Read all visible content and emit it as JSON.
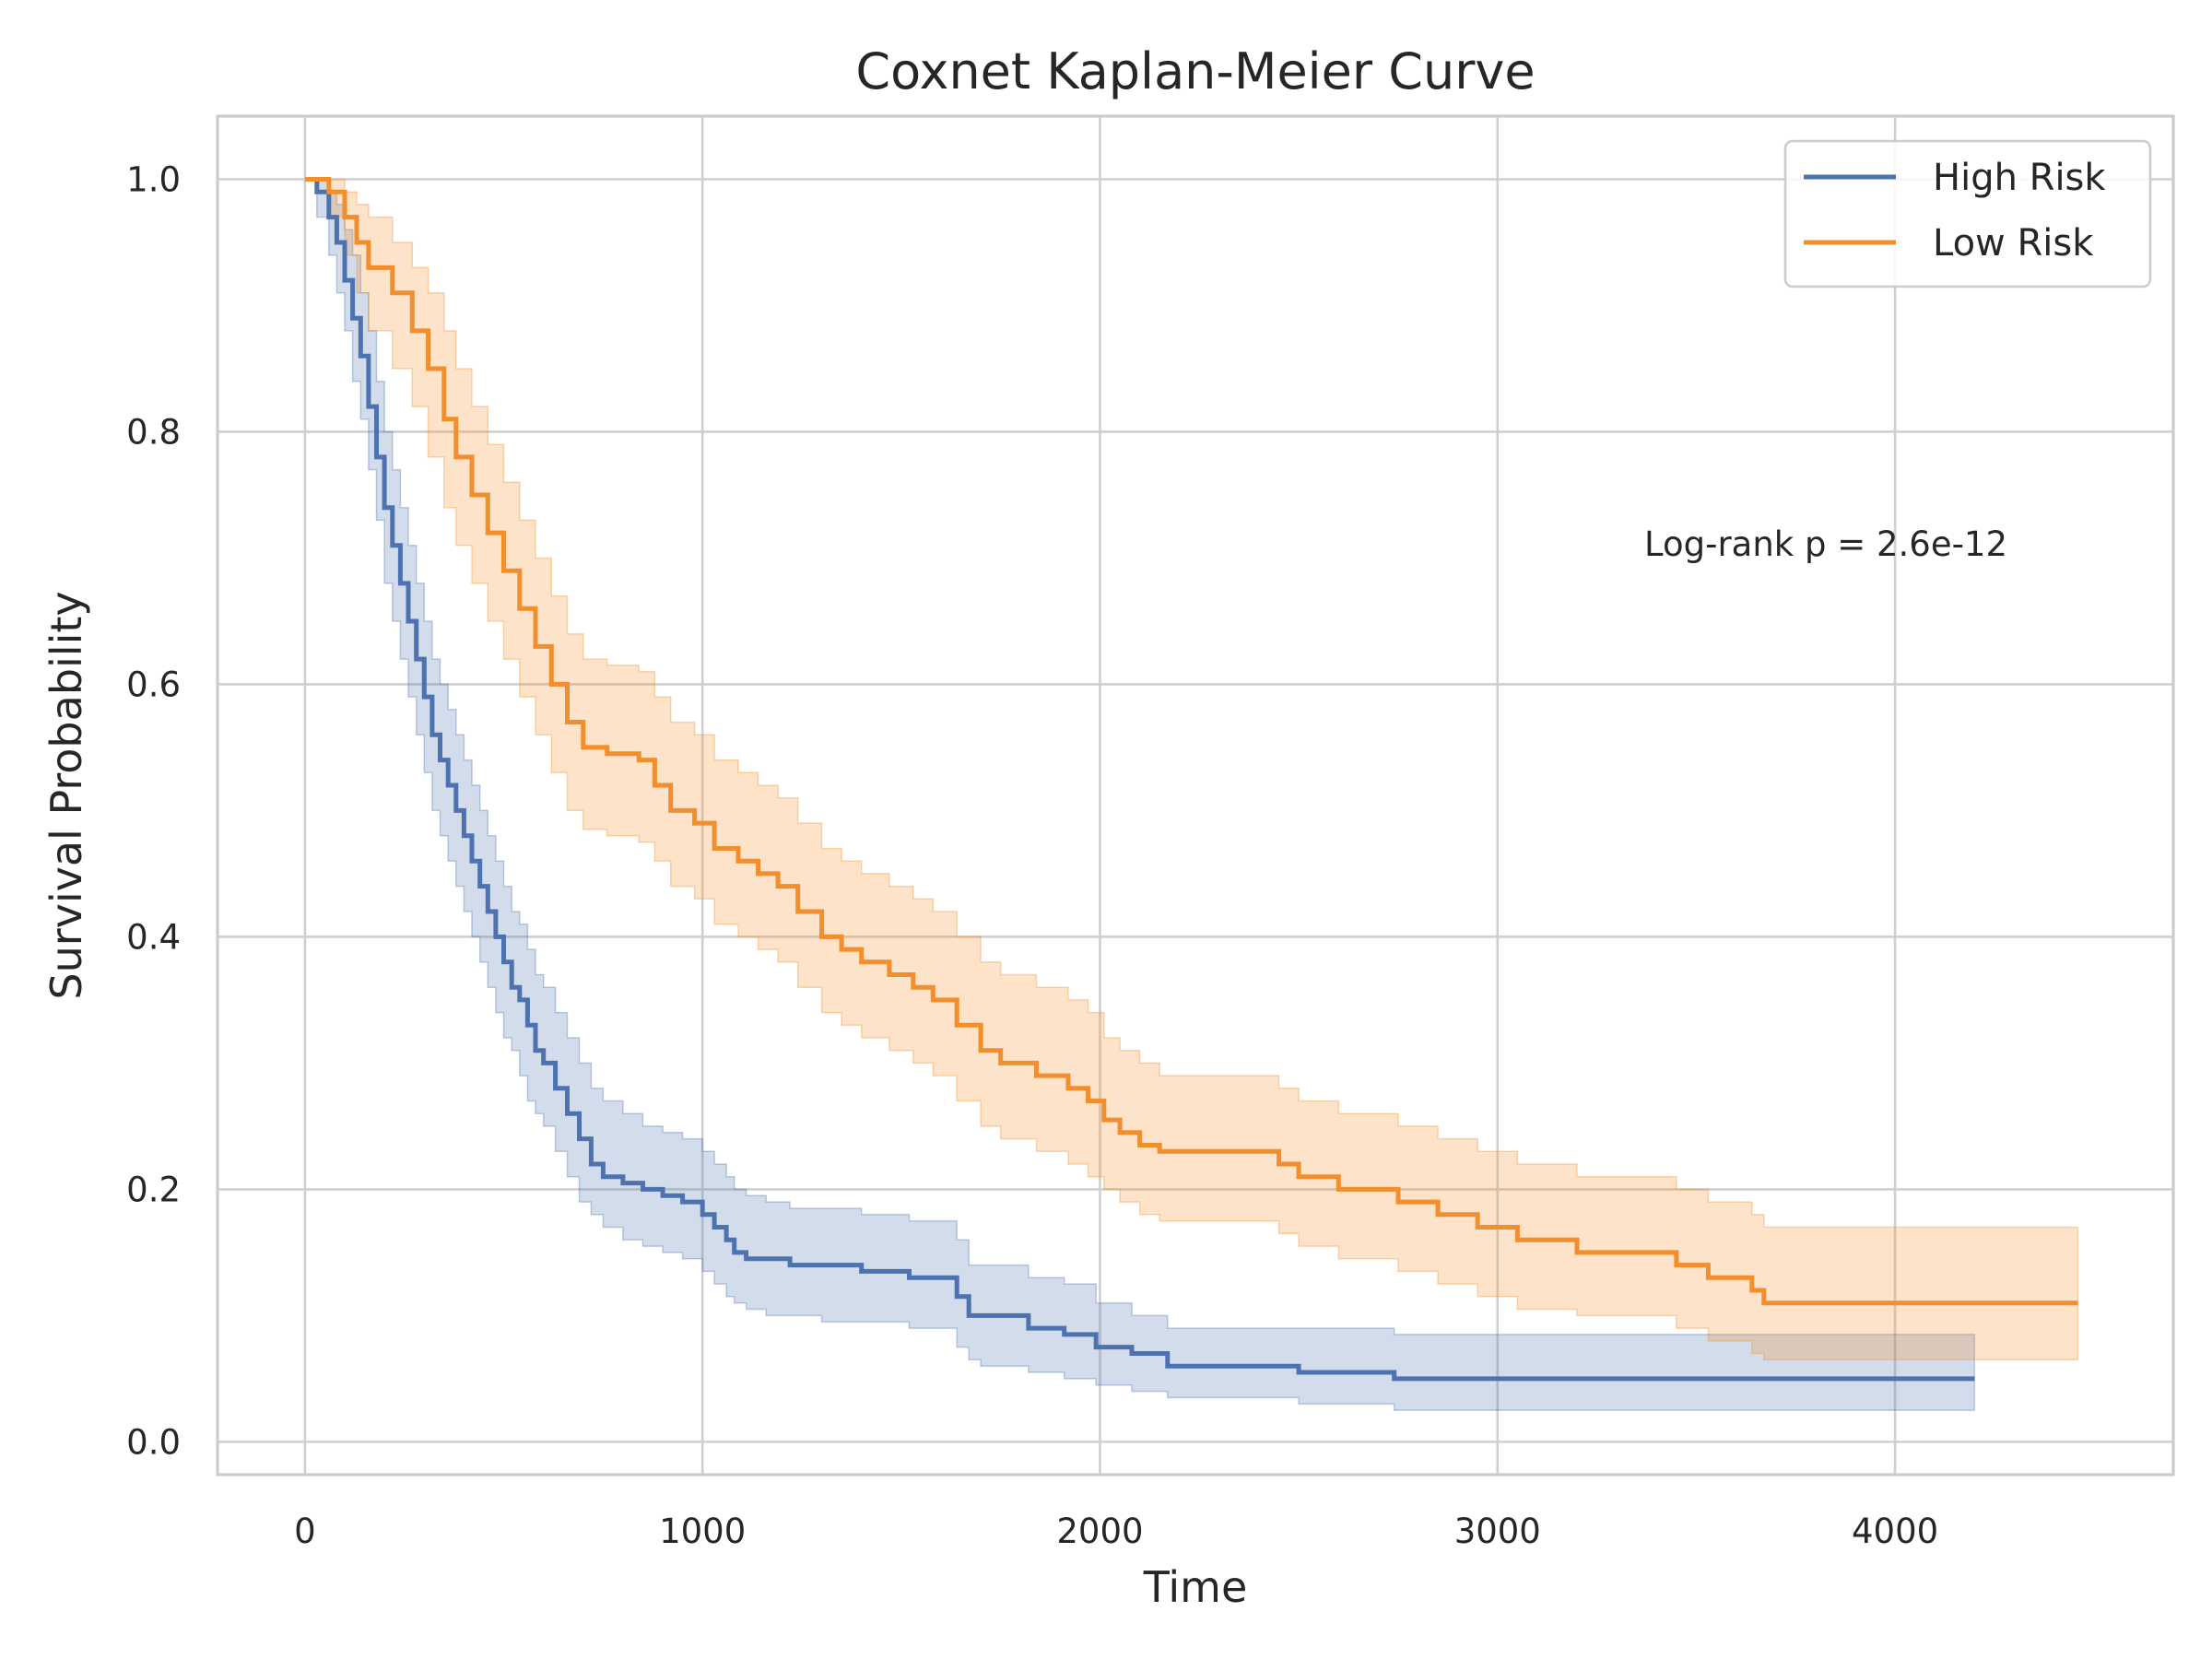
{
  "chart_data": {
    "type": "line",
    "title": "Coxnet Kaplan-Meier Curve",
    "xlabel": "Time",
    "ylabel": "Survival Probability",
    "xlim": [
      -220,
      4700
    ],
    "ylim": [
      -0.026,
      1.05
    ],
    "xticks": [
      0,
      1000,
      2000,
      3000,
      4000
    ],
    "yticks": [
      0.0,
      0.2,
      0.4,
      0.6,
      0.8,
      1.0
    ],
    "xtick_labels": [
      "0",
      "1000",
      "2000",
      "3000",
      "4000"
    ],
    "ytick_labels": [
      "0.0",
      "0.2",
      "0.4",
      "0.6",
      "0.8",
      "1.0"
    ],
    "grid": true,
    "legend_position": "top-right",
    "annotation": "Log-rank p = 2.6e-12",
    "series": [
      {
        "name": "High Risk",
        "color": "#4c72b0",
        "step": true,
        "x": [
          0,
          30,
          60,
          80,
          100,
          120,
          140,
          160,
          180,
          200,
          220,
          240,
          260,
          280,
          300,
          320,
          340,
          360,
          380,
          400,
          420,
          440,
          460,
          480,
          500,
          520,
          540,
          560,
          580,
          600,
          630,
          660,
          690,
          720,
          750,
          800,
          850,
          900,
          950,
          1000,
          1030,
          1060,
          1080,
          1110,
          1160,
          1220,
          1300,
          1400,
          1520,
          1640,
          1670,
          1700,
          1820,
          1910,
          1990,
          2080,
          2170,
          2500,
          2740,
          4200
        ],
        "y": [
          1.0,
          0.99,
          0.97,
          0.95,
          0.92,
          0.89,
          0.86,
          0.82,
          0.78,
          0.74,
          0.71,
          0.68,
          0.65,
          0.62,
          0.59,
          0.56,
          0.54,
          0.52,
          0.5,
          0.48,
          0.46,
          0.44,
          0.42,
          0.4,
          0.38,
          0.36,
          0.35,
          0.33,
          0.31,
          0.3,
          0.28,
          0.26,
          0.24,
          0.22,
          0.21,
          0.205,
          0.2,
          0.195,
          0.19,
          0.18,
          0.17,
          0.16,
          0.15,
          0.145,
          0.145,
          0.14,
          0.14,
          0.135,
          0.13,
          0.115,
          0.1,
          0.1,
          0.09,
          0.085,
          0.075,
          0.07,
          0.06,
          0.055,
          0.05,
          0.05
        ],
        "ci_lower": [
          1.0,
          0.97,
          0.94,
          0.91,
          0.88,
          0.84,
          0.81,
          0.77,
          0.73,
          0.68,
          0.65,
          0.62,
          0.59,
          0.56,
          0.53,
          0.5,
          0.48,
          0.46,
          0.44,
          0.42,
          0.4,
          0.38,
          0.36,
          0.34,
          0.32,
          0.31,
          0.29,
          0.27,
          0.26,
          0.25,
          0.23,
          0.21,
          0.19,
          0.18,
          0.17,
          0.16,
          0.155,
          0.15,
          0.145,
          0.135,
          0.125,
          0.115,
          0.11,
          0.105,
          0.1,
          0.1,
          0.095,
          0.095,
          0.09,
          0.075,
          0.065,
          0.06,
          0.055,
          0.05,
          0.045,
          0.04,
          0.035,
          0.03,
          0.025,
          0.025
        ],
        "ci_upper": [
          1.0,
          1.0,
          0.99,
          0.98,
          0.96,
          0.94,
          0.91,
          0.88,
          0.84,
          0.8,
          0.77,
          0.74,
          0.71,
          0.68,
          0.65,
          0.62,
          0.6,
          0.58,
          0.56,
          0.54,
          0.52,
          0.5,
          0.48,
          0.46,
          0.44,
          0.42,
          0.41,
          0.39,
          0.37,
          0.36,
          0.34,
          0.32,
          0.3,
          0.28,
          0.27,
          0.26,
          0.25,
          0.245,
          0.24,
          0.23,
          0.22,
          0.21,
          0.2,
          0.195,
          0.19,
          0.185,
          0.185,
          0.18,
          0.175,
          0.16,
          0.14,
          0.14,
          0.13,
          0.125,
          0.11,
          0.1,
          0.09,
          0.09,
          0.085,
          0.085
        ]
      },
      {
        "name": "Low Risk",
        "color": "#f28e2b",
        "step": true,
        "x": [
          0,
          60,
          100,
          130,
          160,
          220,
          270,
          310,
          350,
          380,
          420,
          460,
          500,
          540,
          580,
          620,
          660,
          700,
          760,
          840,
          880,
          920,
          980,
          1030,
          1090,
          1140,
          1190,
          1240,
          1300,
          1350,
          1400,
          1470,
          1530,
          1580,
          1640,
          1700,
          1750,
          1840,
          1920,
          1970,
          2010,
          2050,
          2100,
          2150,
          2450,
          2500,
          2600,
          2750,
          2850,
          2950,
          3050,
          3200,
          3450,
          3530,
          3640,
          3670,
          4460
        ],
        "y": [
          1.0,
          0.99,
          0.97,
          0.95,
          0.93,
          0.91,
          0.88,
          0.85,
          0.81,
          0.78,
          0.75,
          0.72,
          0.69,
          0.66,
          0.63,
          0.6,
          0.57,
          0.55,
          0.545,
          0.54,
          0.52,
          0.5,
          0.49,
          0.47,
          0.46,
          0.45,
          0.44,
          0.42,
          0.4,
          0.39,
          0.38,
          0.37,
          0.36,
          0.35,
          0.33,
          0.31,
          0.3,
          0.29,
          0.28,
          0.27,
          0.255,
          0.245,
          0.235,
          0.23,
          0.22,
          0.21,
          0.2,
          0.19,
          0.18,
          0.17,
          0.16,
          0.15,
          0.14,
          0.13,
          0.12,
          0.11,
          0.11
        ],
        "ci_lower": [
          1.0,
          0.97,
          0.94,
          0.91,
          0.88,
          0.85,
          0.82,
          0.78,
          0.74,
          0.71,
          0.68,
          0.65,
          0.62,
          0.59,
          0.56,
          0.53,
          0.5,
          0.485,
          0.48,
          0.475,
          0.46,
          0.44,
          0.43,
          0.41,
          0.4,
          0.39,
          0.38,
          0.36,
          0.34,
          0.33,
          0.32,
          0.31,
          0.3,
          0.29,
          0.27,
          0.25,
          0.24,
          0.23,
          0.22,
          0.21,
          0.2,
          0.19,
          0.18,
          0.175,
          0.165,
          0.155,
          0.145,
          0.135,
          0.125,
          0.115,
          0.105,
          0.1,
          0.09,
          0.08,
          0.07,
          0.065,
          0.065
        ],
        "ci_upper": [
          1.0,
          1.0,
          0.99,
          0.98,
          0.97,
          0.95,
          0.93,
          0.91,
          0.88,
          0.85,
          0.82,
          0.79,
          0.76,
          0.73,
          0.7,
          0.67,
          0.64,
          0.62,
          0.615,
          0.61,
          0.59,
          0.57,
          0.56,
          0.54,
          0.53,
          0.52,
          0.51,
          0.49,
          0.47,
          0.46,
          0.45,
          0.44,
          0.43,
          0.42,
          0.4,
          0.38,
          0.37,
          0.36,
          0.35,
          0.34,
          0.32,
          0.31,
          0.3,
          0.29,
          0.28,
          0.27,
          0.26,
          0.25,
          0.24,
          0.23,
          0.22,
          0.21,
          0.2,
          0.19,
          0.18,
          0.17,
          0.17
        ]
      }
    ]
  }
}
